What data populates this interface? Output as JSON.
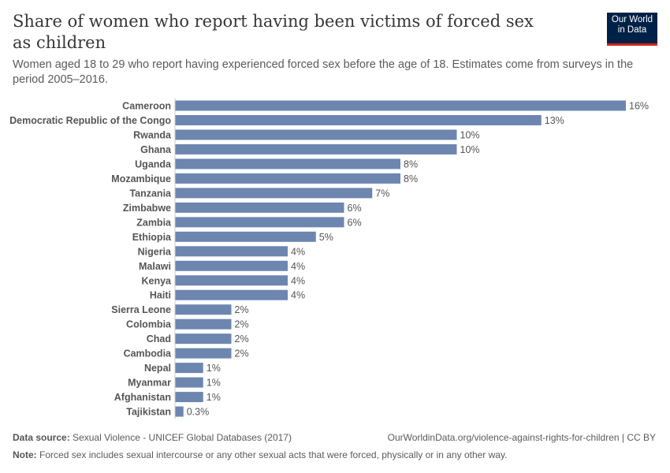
{
  "header": {
    "title": "Share of women who report having been victims of forced sex as children",
    "subtitle": "Women aged 18 to 29 who report having experienced forced sex before the age of 18. Estimates come from surveys in the period 2005–2016.",
    "logo": "Our World in Data"
  },
  "chart_data": {
    "type": "bar",
    "orientation": "horizontal",
    "bar_color": "#6d86b0",
    "categories": [
      "Cameroon",
      "Democratic Republic of the Congo",
      "Rwanda",
      "Ghana",
      "Uganda",
      "Mozambique",
      "Tanzania",
      "Zimbabwe",
      "Zambia",
      "Ethiopia",
      "Nigeria",
      "Malawi",
      "Kenya",
      "Haiti",
      "Sierra Leone",
      "Colombia",
      "Chad",
      "Cambodia",
      "Nepal",
      "Myanmar",
      "Afghanistan",
      "Tajikistan"
    ],
    "values": [
      16,
      13,
      10,
      10,
      8,
      8,
      7,
      6,
      6,
      5,
      4,
      4,
      4,
      4,
      2,
      2,
      2,
      2,
      1,
      1,
      1,
      0.3
    ],
    "labels": [
      "16%",
      "13%",
      "10%",
      "10%",
      "8%",
      "8%",
      "7%",
      "6%",
      "6%",
      "5%",
      "4%",
      "4%",
      "4%",
      "4%",
      "2%",
      "2%",
      "2%",
      "2%",
      "1%",
      "1%",
      "1%",
      "0.3%"
    ],
    "unit": "%",
    "xlim": [
      0,
      16
    ],
    "grid": false
  },
  "footer": {
    "source_label": "Data source:",
    "source": "Sexual Violence - UNICEF Global Databases (2017)",
    "url": "OurWorldinData.org/violence-against-rights-for-children | CC BY",
    "note_label": "Note:",
    "note": "Forced sex includes sexual intercourse or any other sexual acts that were forced, physically or in any other way."
  }
}
